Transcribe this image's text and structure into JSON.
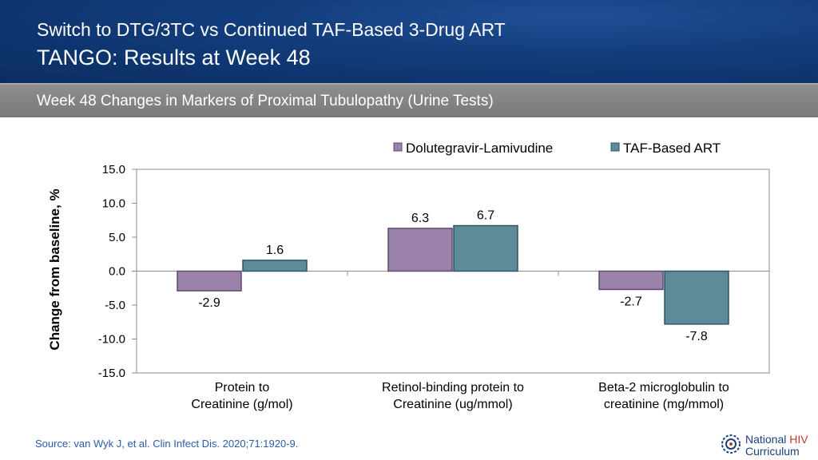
{
  "header": {
    "title_line1": "Switch to DTG/3TC vs Continued TAF-Based 3-Drug ART",
    "title_line2": "TANGO: Results at Week 48"
  },
  "subtitle": "Week 48 Changes in Markers of Proximal Tubulopathy (Urine Tests)",
  "source": "Source: van Wyk J, et al. Clin Infect Dis. 2020;71:1920-9.",
  "logo": {
    "word1": "National",
    "word2": "HIV",
    "word3": "Curriculum"
  },
  "colors": {
    "series1": "#9b82ab",
    "series2": "#5f8a99",
    "header_bg": "#123d7c",
    "subbar_bg": "#868686"
  },
  "chart_data": {
    "type": "bar",
    "ylabel": "Change from baseline, %",
    "ylim": [
      -15,
      15
    ],
    "yticks": [
      "15.0",
      "10.0",
      "5.0",
      "0.0",
      "-5.0",
      "-10.0",
      "-15.0"
    ],
    "ytick_values": [
      15,
      10,
      5,
      0,
      -5,
      -10,
      -15
    ],
    "categories": [
      [
        "Protein to",
        "Creatinine (g/mol)"
      ],
      [
        "Retinol-binding protein to",
        "Creatinine (ug/mmol)"
      ],
      [
        "Beta-2 microglobulin to",
        "creatinine (mg/mmol)"
      ]
    ],
    "series": [
      {
        "name": "Dolutegravir-Lamivudine",
        "values": [
          -2.9,
          6.3,
          -2.7
        ],
        "labels": [
          "-2.9",
          "6.3",
          "-2.7"
        ]
      },
      {
        "name": "TAF-Based ART",
        "values": [
          1.6,
          6.7,
          -7.8
        ],
        "labels": [
          "1.6",
          "6.7",
          "-7.8"
        ]
      }
    ],
    "legend_position": "top-right",
    "grid": false
  }
}
